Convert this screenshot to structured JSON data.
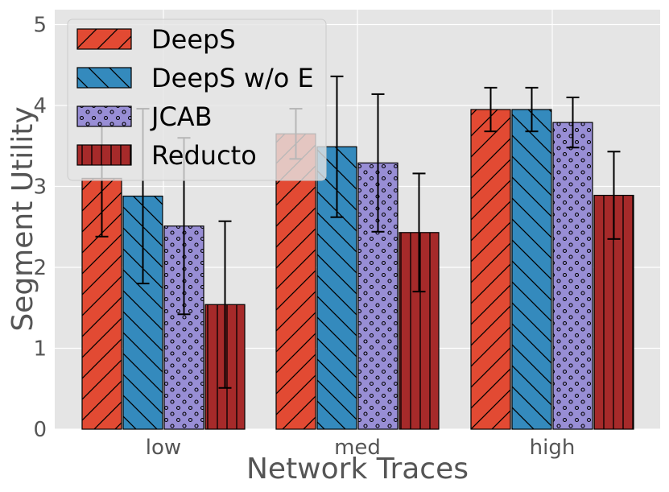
{
  "chart_data": {
    "type": "bar",
    "title": "",
    "xlabel": "Network Traces",
    "ylabel": "Segment Utility",
    "categories": [
      "low",
      "med",
      "high"
    ],
    "ylim": [
      0,
      5.2
    ],
    "yticks": [
      "0",
      "1",
      "2",
      "3",
      "4",
      "5"
    ],
    "grid": true,
    "legend_position": "top-left",
    "series": [
      {
        "name": "DeepS",
        "values": [
          3.1,
          3.65,
          3.95
        ],
        "err": [
          0.72,
          0.31,
          0.27
        ],
        "color": "#E24A33",
        "hatch": "diag-forward"
      },
      {
        "name": "DeepS w/o E",
        "values": [
          2.88,
          3.49,
          3.95
        ],
        "err": [
          1.08,
          0.87,
          0.27
        ],
        "color": "#348ABD",
        "hatch": "diag-back"
      },
      {
        "name": "JCAB",
        "values": [
          2.51,
          3.29,
          3.79
        ],
        "err": [
          1.09,
          0.85,
          0.31
        ],
        "color": "#988ED5",
        "hatch": "dots"
      },
      {
        "name": "Reducto",
        "values": [
          1.54,
          2.43,
          2.89
        ],
        "err": [
          1.03,
          0.73,
          0.54
        ],
        "color": "#A62A2A",
        "hatch": "vertical"
      }
    ]
  }
}
